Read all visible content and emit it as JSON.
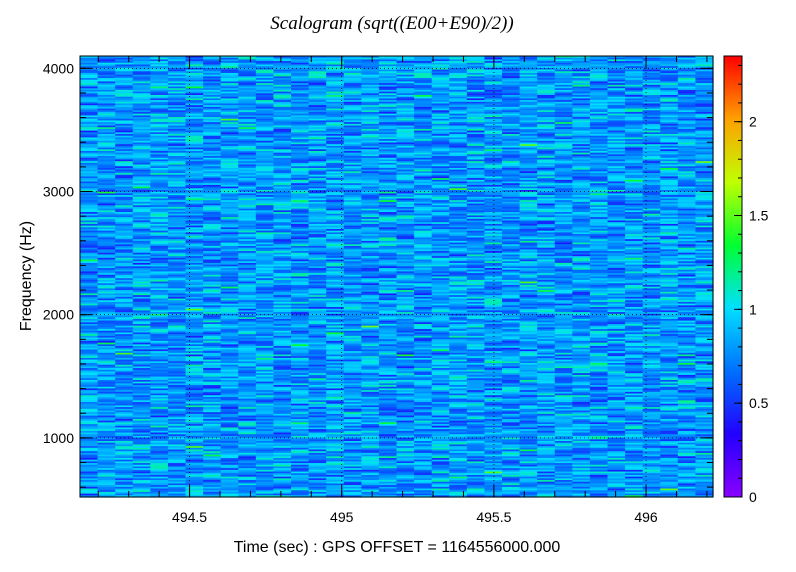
{
  "chart_data": {
    "type": "heatmap",
    "title": "Scalogram (sqrt((E00+E90)/2))",
    "xlabel": "Time (sec) : GPS OFFSET = 1164556000.000",
    "ylabel": "Frequency (Hz)",
    "xlim": [
      494.14,
      496.22
    ],
    "ylim": [
      520,
      4100
    ],
    "x_ticks": [
      {
        "value": 494.5,
        "label": "494.5"
      },
      {
        "value": 495,
        "label": "495"
      },
      {
        "value": 495.5,
        "label": "495.5"
      },
      {
        "value": 496,
        "label": "496"
      }
    ],
    "y_ticks": [
      {
        "value": 1000,
        "label": "1000"
      },
      {
        "value": 2000,
        "label": "2000"
      },
      {
        "value": 3000,
        "label": "3000"
      },
      {
        "value": 4000,
        "label": "4000"
      }
    ],
    "colorbar": {
      "range": [
        0,
        2.35
      ],
      "ticks": [
        {
          "value": 0,
          "label": "0"
        },
        {
          "value": 0.5,
          "label": "0.5"
        },
        {
          "value": 1,
          "label": "1"
        },
        {
          "value": 1.5,
          "label": "1.5"
        },
        {
          "value": 2,
          "label": "2"
        }
      ],
      "colors": [
        "#8a00ff",
        "#2200ff",
        "#0070ff",
        "#00e0ff",
        "#00ff30",
        "#c0ff00",
        "#ffa000",
        "#ff0000"
      ]
    },
    "grid": true,
    "grid_style": "dotted",
    "data_description_values": {
      "typical_range": [
        0.4,
        1.2
      ],
      "time_bins": 36,
      "frequency_bins": 260
    }
  }
}
